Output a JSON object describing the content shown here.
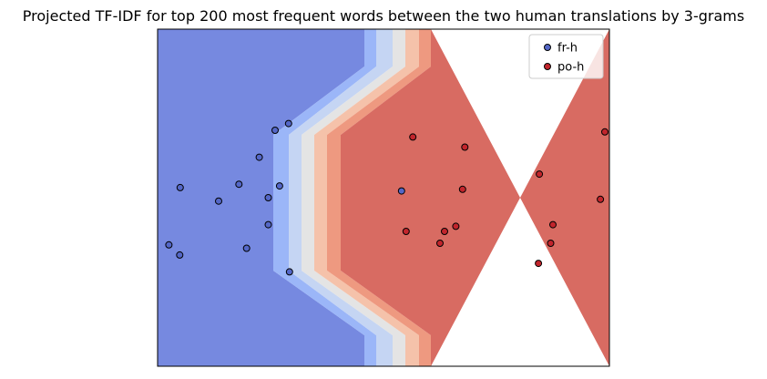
{
  "chart_data": {
    "type": "scatter",
    "title": "Projected TF-IDF for top 200 most frequent words between the two human translations by 3-grams",
    "xlabel": "",
    "ylabel": "",
    "xlim": [
      0,
      10
    ],
    "ylim": [
      0,
      10
    ],
    "axes_ticks_visible": false,
    "grid": false,
    "legend_position": "top-right",
    "background": "decision-boundary-contour",
    "contour_colors": [
      "#7689e0",
      "#9bb6f8",
      "#c5d5f3",
      "#e4e4e4",
      "#f5c2aa",
      "#ee9980",
      "#d86b62"
    ],
    "series": [
      {
        "name": "fr-h",
        "color": "#5467c7",
        "points": [
          {
            "x": 0.25,
            "y": 3.6
          },
          {
            "x": 0.5,
            "y": 5.3
          },
          {
            "x": 0.49,
            "y": 3.3
          },
          {
            "x": 1.35,
            "y": 4.9
          },
          {
            "x": 1.8,
            "y": 5.4
          },
          {
            "x": 1.97,
            "y": 3.5
          },
          {
            "x": 2.25,
            "y": 6.2
          },
          {
            "x": 2.45,
            "y": 5.0
          },
          {
            "x": 2.45,
            "y": 4.2
          },
          {
            "x": 2.6,
            "y": 7.0
          },
          {
            "x": 2.7,
            "y": 5.35
          },
          {
            "x": 2.9,
            "y": 7.2
          },
          {
            "x": 2.92,
            "y": 2.8
          },
          {
            "x": 5.4,
            "y": 5.2
          }
        ]
      },
      {
        "name": "po-h",
        "color": "#c2252c",
        "points": [
          {
            "x": 5.65,
            "y": 6.8
          },
          {
            "x": 6.8,
            "y": 6.5
          },
          {
            "x": 5.5,
            "y": 4.0
          },
          {
            "x": 6.35,
            "y": 4.0
          },
          {
            "x": 6.25,
            "y": 3.65
          },
          {
            "x": 6.6,
            "y": 4.15
          },
          {
            "x": 6.75,
            "y": 5.25
          },
          {
            "x": 8.45,
            "y": 5.7
          },
          {
            "x": 8.75,
            "y": 4.2
          },
          {
            "x": 8.7,
            "y": 3.65
          },
          {
            "x": 8.43,
            "y": 3.05
          },
          {
            "x": 9.8,
            "y": 4.95
          },
          {
            "x": 9.9,
            "y": 6.95
          }
        ]
      }
    ]
  }
}
